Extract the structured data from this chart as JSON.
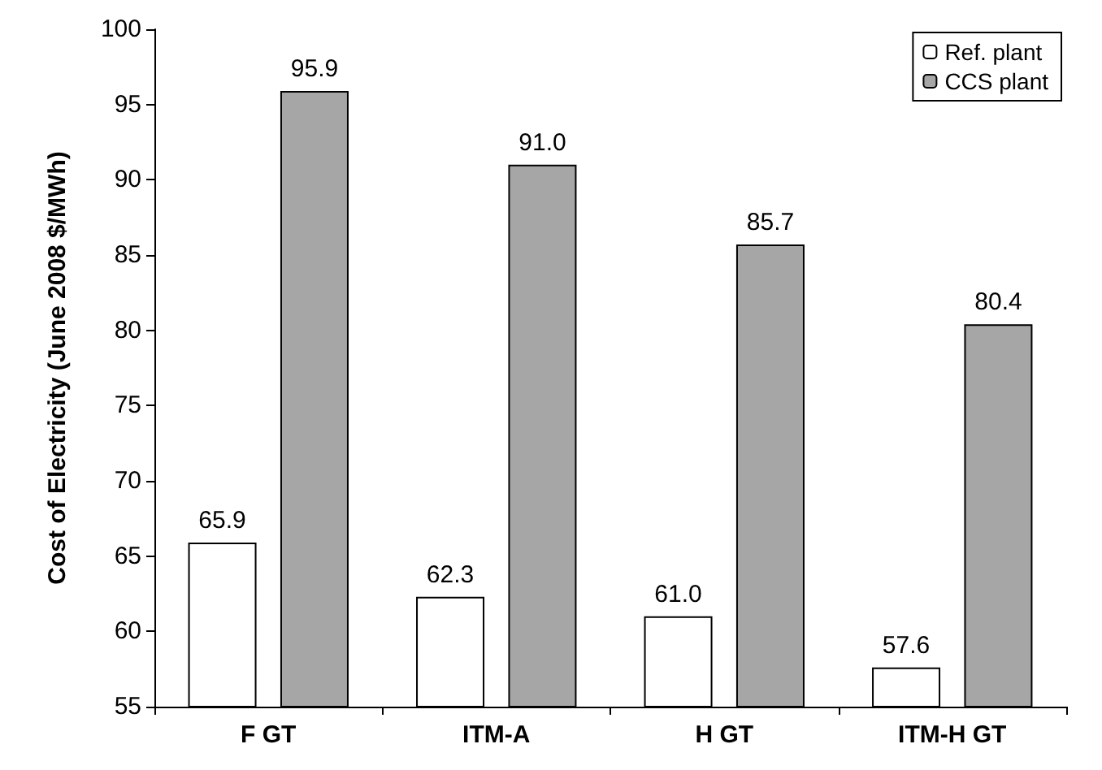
{
  "chart_data": {
    "type": "bar",
    "ylabel": "Cost of Electricity (June 2008 $/MWh)",
    "categories": [
      "F GT",
      "ITM-A",
      "H GT",
      "ITM-H GT"
    ],
    "series": [
      {
        "name": "Ref. plant",
        "color": "#ffffff",
        "values": [
          65.9,
          62.3,
          61.0,
          57.6
        ],
        "value_labels": [
          "65.9",
          "62.3",
          "61.0",
          "57.6"
        ]
      },
      {
        "name": "CCS plant",
        "color": "#a6a6a6",
        "values": [
          95.9,
          91.0,
          85.7,
          80.4
        ],
        "value_labels": [
          "95.9",
          "91.0",
          "85.7",
          "80.4"
        ]
      }
    ],
    "ylim": [
      55,
      100
    ],
    "yticks": [
      55,
      60,
      65,
      70,
      75,
      80,
      85,
      90,
      95,
      100
    ],
    "grid": false,
    "legend": "top right"
  }
}
